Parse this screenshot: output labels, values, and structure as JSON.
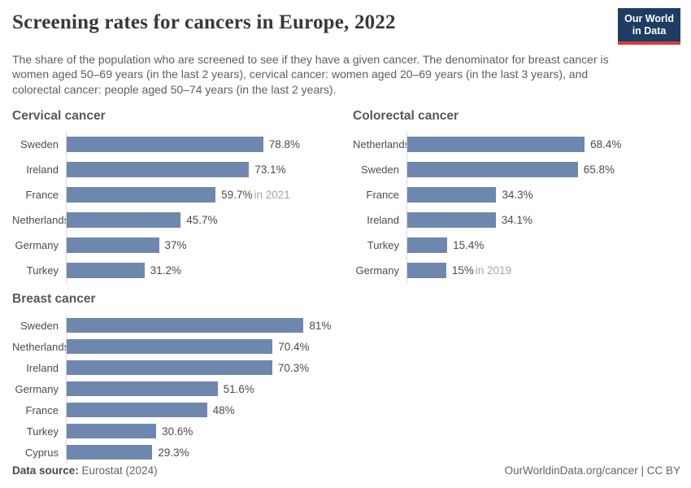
{
  "header": {
    "title": "Screening rates for cancers in Europe, 2022",
    "subtitle": "The share of the population who are screened to see if they have a given cancer. The denominator for breast cancer is women aged 50–69 years (in the last 2 years), cervical cancer: women aged 20–69 years (in the last 3 years), and colorectal cancer: people aged 50–74 years (in the last 2 years).",
    "logo": {
      "line1": "Our World",
      "line2": "in Data",
      "bg": "#1d3d63",
      "accent": "#d93d37"
    }
  },
  "chart_data": [
    {
      "type": "bar",
      "title": "Cervical cancer",
      "bar_color": "#6e87af",
      "xlim": [
        0,
        109.5
      ],
      "categories": [
        "Sweden",
        "Ireland",
        "France",
        "Netherlands",
        "Germany",
        "Turkey"
      ],
      "values": [
        78.8,
        73.1,
        59.7,
        45.7,
        37,
        31.2
      ],
      "value_labels": [
        "78.8%",
        "73.1%",
        "59.7%",
        "45.7%",
        "37%",
        "31.2%"
      ],
      "notes": [
        "",
        "",
        "in 2021",
        "",
        "",
        ""
      ]
    },
    {
      "type": "bar",
      "title": "Colorectal cancer",
      "bar_color": "#6e87af",
      "xlim": [
        0,
        105.4
      ],
      "categories": [
        "Netherlands",
        "Sweden",
        "France",
        "Ireland",
        "Turkey",
        "Germany"
      ],
      "values": [
        68.4,
        65.8,
        34.3,
        34.1,
        15.4,
        15
      ],
      "value_labels": [
        "68.4%",
        "65.8%",
        "34.3%",
        "34.1%",
        "15.4%",
        "15%"
      ],
      "notes": [
        "",
        "",
        "",
        "",
        "",
        "in 2019"
      ]
    },
    {
      "type": "bar",
      "title": "Breast cancer",
      "bar_color": "#6e87af",
      "xlim": [
        0,
        93.4
      ],
      "categories": [
        "Sweden",
        "Netherlands",
        "Ireland",
        "Germany",
        "France",
        "Turkey",
        "Cyprus"
      ],
      "values": [
        81,
        70.4,
        70.3,
        51.6,
        48,
        30.6,
        29.3
      ],
      "value_labels": [
        "81%",
        "70.4%",
        "70.3%",
        "51.6%",
        "48%",
        "30.6%",
        "29.3%"
      ],
      "notes": [
        "",
        "",
        "",
        "",
        "",
        "",
        ""
      ]
    }
  ],
  "footer": {
    "source_label": "Data source:",
    "source_value": " Eurostat (2024)",
    "credit": "OurWorldinData.org/cancer | CC BY"
  }
}
